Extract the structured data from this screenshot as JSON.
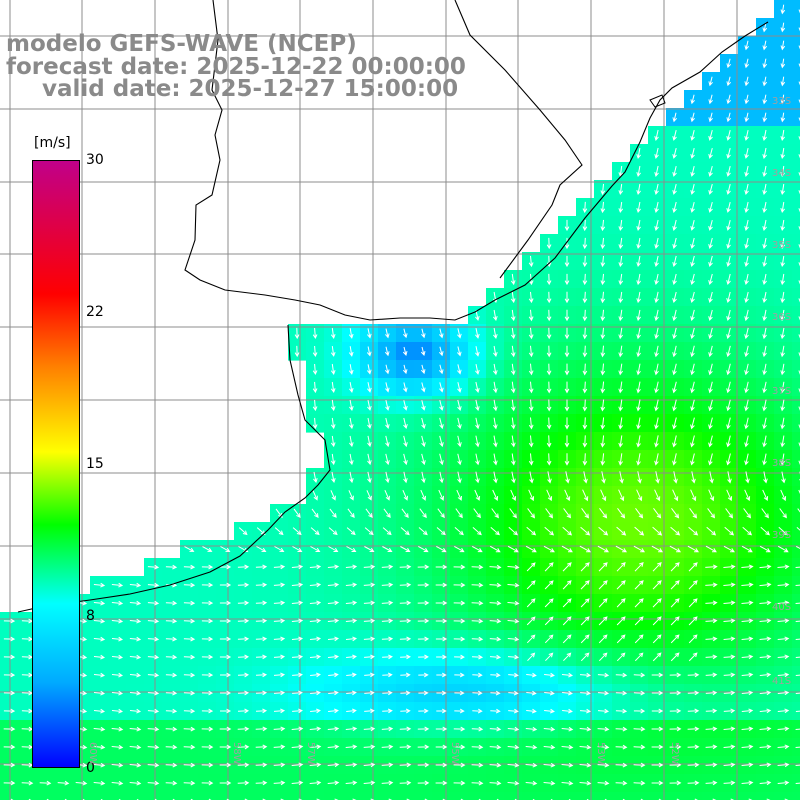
{
  "header": {
    "model_line": "modelo GEFS-WAVE (NCEP)",
    "forecast_line": "forecast date: 2025-12-22 00:00:00",
    "valid_line": "valid date: 2025-12-27 15:00:00"
  },
  "colorbar": {
    "unit": "[m/s]",
    "ticks": [
      "30",
      "22",
      "15",
      "8",
      "0"
    ],
    "min": 0,
    "max": 30,
    "colors": [
      "#0000ff",
      "#00aaff",
      "#00ffff",
      "#00ff00",
      "#ffff00",
      "#ff8000",
      "#ff0000",
      "#c0008a"
    ]
  },
  "map": {
    "land_color": "#ffffff",
    "grid_color": "#8c8c8c",
    "coast_color": "#000000",
    "arrow_color": "#ffffff",
    "lat_labels": [
      "32S",
      "33S",
      "34S",
      "35S",
      "36S",
      "37S",
      "38S",
      "39S",
      "40S",
      "41S"
    ],
    "lon_labels": [
      "60W",
      "59W",
      "58W",
      "57W",
      "56W",
      "55W",
      "54W",
      "53W",
      "52W",
      "51W"
    ]
  }
}
